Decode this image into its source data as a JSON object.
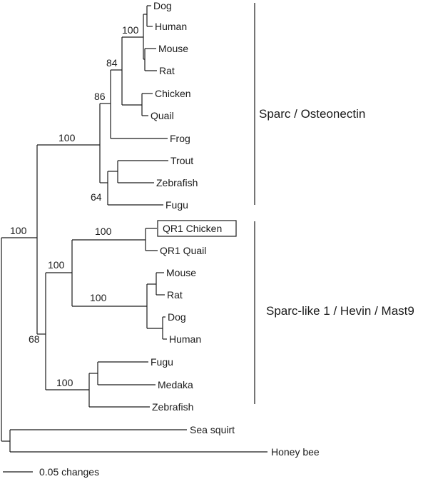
{
  "tree": {
    "leaves": {
      "dog1": "Dog",
      "human1": "Human",
      "mouse1": "Mouse",
      "rat1": "Rat",
      "chicken1": "Chicken",
      "quail1": "Quail",
      "frog": "Frog",
      "trout": "Trout",
      "zebrafish1": "Zebrafish",
      "fugu1": "Fugu",
      "qr1chicken": "QR1 Chicken",
      "qr1quail": "QR1 Quail",
      "mouse2": "Mouse",
      "rat2": "Rat",
      "dog2": "Dog",
      "human2": "Human",
      "fugu2": "Fugu",
      "medaka": "Medaka",
      "zebrafish2": "Zebrafish",
      "seasquirt": "Sea squirt",
      "honeybee": "Honey bee"
    },
    "bootstrap": {
      "b100_mammal": "100",
      "b84": "84",
      "b86": "86",
      "b100_sparc": "100",
      "b64": "64",
      "b100_vert": "100",
      "b100_qr1": "100",
      "b100_sl": "100",
      "b100_mam2": "100",
      "b68": "68",
      "b100_fish2": "100"
    },
    "clades": {
      "sparc": "Sparc / Osteonectin",
      "sparclike": "Sparc-like 1 / Hevin / Mast9"
    },
    "scale_label": "0.05 changes",
    "highlighted_leaf": "QR1 Chicken"
  }
}
